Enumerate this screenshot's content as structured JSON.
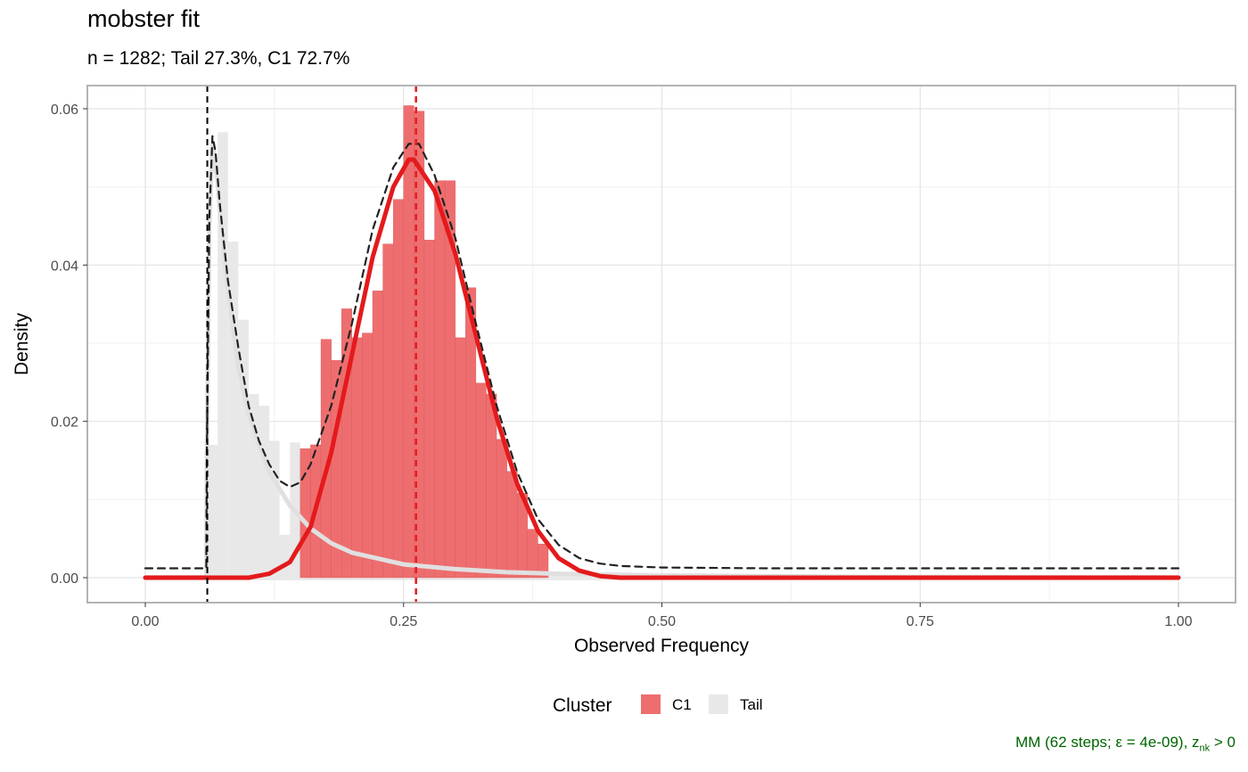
{
  "title": "mobster fit",
  "subtitle": "n = 1282; Tail 27.3%, C1 72.7%",
  "caption": {
    "prefix": "MM (62 steps; ε = 4e-09), z",
    "subscript": "nk",
    "suffix": " > 0"
  },
  "colors": {
    "c1": "#E41A1C",
    "c1_fill": "#EE6E6F",
    "tail": "#E0E0E0",
    "tail_fill": "#E8E8E8",
    "mixture": "#222222",
    "caption": "#006400"
  },
  "chart_data": {
    "type": "histogram",
    "title": "mobster fit",
    "subtitle": "n = 1282; Tail 27.3%, C1 72.7%",
    "xlabel": "Observed Frequency",
    "ylabel": "Density",
    "xlim": [
      -0.05,
      1.05
    ],
    "ylim": [
      -0.0032,
      0.063
    ],
    "x_ticks": [
      0.0,
      0.25,
      0.5,
      0.75,
      1.0
    ],
    "x_tick_labels": [
      "0.00",
      "0.25",
      "0.50",
      "0.75",
      "1.00"
    ],
    "y_ticks": [
      0.0,
      0.02,
      0.04,
      0.06
    ],
    "y_tick_labels": [
      "0.00",
      "0.02",
      "0.04",
      "0.06"
    ],
    "grid": true,
    "legend_position": "bottom",
    "legend": {
      "title": "Cluster",
      "entries": [
        {
          "label": "C1",
          "color": "#EE6E6F"
        },
        {
          "label": "Tail",
          "color": "#E8E8E8"
        }
      ]
    },
    "bin_width": 0.01,
    "histogram": {
      "tail": {
        "bin_starts": [
          0.06,
          0.07,
          0.08,
          0.09,
          0.1,
          0.11,
          0.12,
          0.13,
          0.14,
          0.15
        ],
        "density": [
          0.017,
          0.057,
          0.043,
          0.033,
          0.0235,
          0.022,
          0.0175,
          0.0055,
          0.0173,
          0.008
        ]
      },
      "c1": {
        "bin_starts": [
          0.15,
          0.16,
          0.17,
          0.18,
          0.19,
          0.2,
          0.21,
          0.22,
          0.23,
          0.24,
          0.25,
          0.26,
          0.27,
          0.28,
          0.29,
          0.3,
          0.31,
          0.32,
          0.33,
          0.34,
          0.35,
          0.36,
          0.37,
          0.38,
          0.39
        ],
        "density": [
          0.0165,
          0.017,
          0.0305,
          0.0278,
          0.0344,
          0.0307,
          0.0313,
          0.0367,
          0.0427,
          0.0484,
          0.0604,
          0.0597,
          0.0432,
          0.0508,
          0.0508,
          0.0307,
          0.0371,
          0.0249,
          0.0235,
          0.0177,
          0.0136,
          0.0108,
          0.0062,
          0.0043,
          0.0
        ]
      }
    },
    "curves": [
      {
        "name": "Tail",
        "style": "solid",
        "x": [
          0.0,
          0.059,
          0.0595,
          0.062,
          0.065,
          0.068,
          0.07,
          0.075,
          0.08,
          0.09,
          0.1,
          0.11,
          0.12,
          0.14,
          0.16,
          0.18,
          0.2,
          0.25,
          0.3,
          0.35,
          0.4,
          0.5,
          0.6,
          0.7,
          0.8,
          0.9,
          1.0
        ],
        "y": [
          0.0,
          0.0,
          0.0155,
          0.045,
          0.0555,
          0.0525,
          0.0505,
          0.043,
          0.037,
          0.027,
          0.021,
          0.017,
          0.0135,
          0.0092,
          0.0063,
          0.0044,
          0.0032,
          0.0017,
          0.0011,
          0.0007,
          0.0005,
          0.0003,
          0.0002,
          0.0001,
          0.0001,
          0.0,
          0.0
        ]
      },
      {
        "name": "C1",
        "style": "solid",
        "x": [
          0.0,
          0.1,
          0.12,
          0.14,
          0.16,
          0.18,
          0.2,
          0.22,
          0.24,
          0.255,
          0.26,
          0.28,
          0.3,
          0.32,
          0.34,
          0.36,
          0.38,
          0.4,
          0.42,
          0.44,
          0.46,
          0.5,
          0.6,
          0.7,
          0.8,
          1.0
        ],
        "y": [
          0.0,
          0.0,
          0.0005,
          0.002,
          0.0065,
          0.016,
          0.0285,
          0.041,
          0.05,
          0.0535,
          0.0535,
          0.0495,
          0.0415,
          0.031,
          0.0205,
          0.012,
          0.006,
          0.0025,
          0.0009,
          0.0002,
          0.0,
          0.0,
          0.0,
          0.0,
          0.0,
          0.0
        ]
      },
      {
        "name": "Mixture",
        "style": "dashed",
        "x": [
          0.0,
          0.058,
          0.059,
          0.0595,
          0.062,
          0.065,
          0.068,
          0.072,
          0.08,
          0.09,
          0.1,
          0.11,
          0.12,
          0.13,
          0.14,
          0.15,
          0.16,
          0.18,
          0.2,
          0.22,
          0.24,
          0.255,
          0.265,
          0.28,
          0.3,
          0.32,
          0.34,
          0.36,
          0.38,
          0.4,
          0.42,
          0.44,
          0.46,
          0.5,
          0.6,
          0.7,
          0.8,
          0.9,
          1.0
        ],
        "y": [
          0.0012,
          0.0012,
          0.0012,
          0.016,
          0.046,
          0.0565,
          0.0545,
          0.048,
          0.038,
          0.0295,
          0.022,
          0.0175,
          0.0145,
          0.0124,
          0.0116,
          0.0122,
          0.0145,
          0.022,
          0.0325,
          0.0445,
          0.0525,
          0.0555,
          0.0555,
          0.0515,
          0.0435,
          0.0325,
          0.022,
          0.0135,
          0.0075,
          0.0042,
          0.0025,
          0.0018,
          0.0015,
          0.0013,
          0.0012,
          0.0012,
          0.0012,
          0.0012,
          0.0012
        ]
      }
    ],
    "reference_lines": [
      {
        "axis": "x",
        "value": 0.06,
        "style": "dashed",
        "color": "#000000"
      },
      {
        "axis": "x",
        "value": 0.262,
        "style": "dashed",
        "color": "#E41A1C"
      }
    ]
  }
}
